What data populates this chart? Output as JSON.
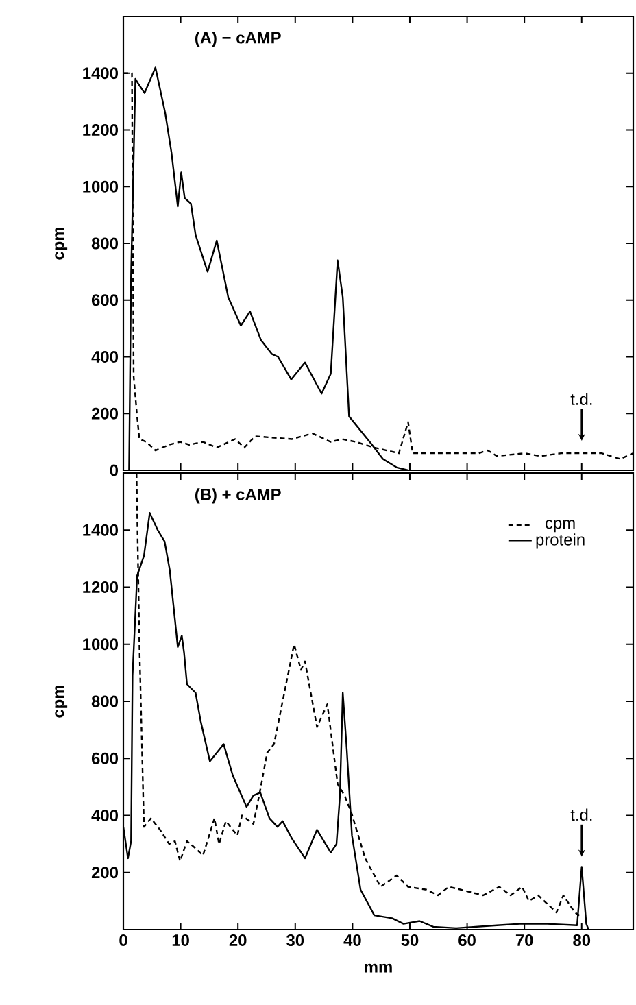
{
  "chart_data": [
    {
      "type": "line",
      "title": "(A) − cAMP",
      "ylabel": "cpm",
      "xlim": [
        0,
        89
      ],
      "ylim": [
        0,
        1600
      ],
      "xticks": [
        0,
        10,
        20,
        30,
        40,
        50,
        60,
        70,
        80
      ],
      "yticks": [
        0,
        200,
        400,
        600,
        800,
        1000,
        1200,
        1400
      ],
      "tick_labels": "y",
      "series": [
        {
          "color": "#000000",
          "line_style": "solid",
          "x": [
            1.0,
            1.35,
            2.1,
            2.7,
            3.7,
            5.6,
            7.3,
            8.4,
            9.5,
            10.1,
            10.7,
            11.8,
            12.6,
            14.7,
            16.3,
            18.3,
            20.5,
            22.1,
            24.0,
            25.9,
            27.0,
            29.3,
            31.7,
            34.6,
            36.2,
            37.4,
            38.3,
            39.4,
            41.4,
            43.4,
            45.3,
            47.7,
            49.7
          ],
          "values": [
            0,
            690,
            1380,
            1360,
            1330,
            1420,
            1260,
            1120,
            930,
            1050,
            960,
            940,
            830,
            700,
            810,
            610,
            510,
            560,
            460,
            410,
            400,
            320,
            380,
            270,
            340,
            740,
            610,
            190,
            140,
            90,
            40,
            10,
            0
          ]
        },
        {
          "color": "#000000",
          "line_style": "dashed",
          "x": [
            0,
            1.5,
            1.8,
            2.4,
            2.8,
            4.0,
            5.6,
            8.0,
            9.9,
            11.5,
            13.9,
            16.3,
            19.5,
            21.1,
            23.0,
            29.4,
            33.0,
            36.2,
            38.2,
            40.6,
            43.8,
            48.1,
            49.7,
            50.5,
            54.1,
            57.3,
            62.0,
            63.6,
            65.2,
            70.0,
            72.8,
            76.4,
            80.4,
            83.5,
            86.7,
            89.0
          ],
          "values": [
            1400,
            1400,
            330,
            190,
            110,
            100,
            70,
            90,
            100,
            90,
            100,
            80,
            110,
            80,
            120,
            110,
            130,
            100,
            110,
            100,
            80,
            60,
            170,
            60,
            60,
            60,
            60,
            70,
            50,
            60,
            50,
            60,
            60,
            60,
            40,
            60
          ]
        }
      ],
      "annotations": [
        "t.d."
      ]
    },
    {
      "type": "line",
      "title": "(B) + cAMP",
      "ylabel": "cpm",
      "xlabel": "mm",
      "xlim": [
        0,
        89
      ],
      "ylim": [
        0,
        1600
      ],
      "xticks": [
        0,
        10,
        20,
        30,
        40,
        50,
        60,
        70,
        80
      ],
      "yticks": [
        200,
        400,
        600,
        800,
        1000,
        1200,
        1400
      ],
      "legend": "top right",
      "series": [
        {
          "name": "cpm",
          "color": "#000000",
          "line_style": "dashed",
          "x": [
            2.3,
            2.8,
            3.6,
            4.8,
            6.4,
            8.0,
            9.0,
            9.9,
            11.1,
            12.3,
            13.9,
            15.9,
            16.7,
            17.9,
            19.9,
            20.7,
            22.7,
            23.9,
            25.1,
            26.3,
            29.8,
            31.0,
            31.7,
            33.8,
            35.6,
            37.4,
            38.6,
            39.8,
            42.2,
            44.9,
            47.7,
            49.7,
            52.9,
            54.9,
            56.8,
            58.9,
            62.8,
            65.6,
            67.6,
            69.6,
            70.8,
            72.4,
            75.6,
            76.8,
            78.8,
            79.6
          ],
          "values": [
            1600,
            1000,
            360,
            390,
            350,
            300,
            310,
            240,
            310,
            290,
            260,
            390,
            300,
            380,
            330,
            400,
            370,
            490,
            620,
            650,
            1000,
            910,
            940,
            710,
            790,
            510,
            470,
            410,
            250,
            150,
            190,
            150,
            140,
            120,
            150,
            140,
            120,
            150,
            120,
            150,
            100,
            120,
            60,
            120,
            60,
            50
          ]
        },
        {
          "name": "protein",
          "color": "#000000",
          "line_style": "solid",
          "x": [
            0,
            0.8,
            1.35,
            1.6,
            2.4,
            3.6,
            4.6,
            6.0,
            7.2,
            8.1,
            9.5,
            10.2,
            10.6,
            11.1,
            12.6,
            13.5,
            15.1,
            17.5,
            19.1,
            21.5,
            22.7,
            23.9,
            25.5,
            26.9,
            27.8,
            29.4,
            31.7,
            33.8,
            36.2,
            37.2,
            37.8,
            38.3,
            39.0,
            39.9,
            41.4,
            43.8,
            46.9,
            48.9,
            51.7,
            54.1,
            58.1,
            65.2,
            69.2,
            74.0,
            79.2,
            80.0,
            80.8,
            81.2
          ],
          "values": [
            360,
            250,
            310,
            890,
            1240,
            1310,
            1460,
            1400,
            1360,
            1260,
            990,
            1030,
            970,
            860,
            830,
            730,
            590,
            650,
            540,
            430,
            470,
            480,
            390,
            360,
            380,
            320,
            250,
            350,
            270,
            300,
            470,
            830,
            630,
            330,
            140,
            50,
            40,
            20,
            30,
            10,
            5,
            15,
            20,
            20,
            15,
            220,
            20,
            0
          ]
        }
      ],
      "annotations": [
        "t.d."
      ]
    }
  ]
}
